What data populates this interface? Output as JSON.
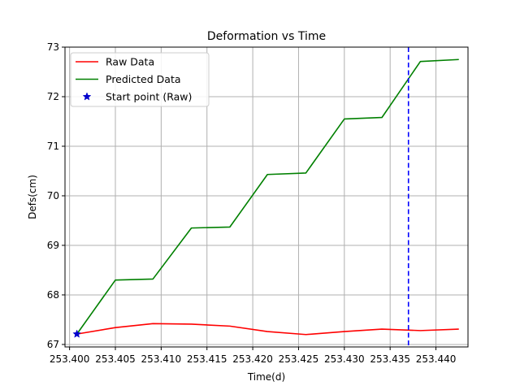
{
  "chart_data": {
    "type": "line",
    "title": "Deformation vs Time",
    "xlabel": "Time(d)",
    "ylabel": "Defs(cm)",
    "xlim": [
      253.3995,
      253.4435
    ],
    "ylim": [
      66.95,
      73.0
    ],
    "xticks": [
      253.4,
      253.405,
      253.41,
      253.415,
      253.42,
      253.425,
      253.43,
      253.435,
      253.44
    ],
    "xtick_labels": [
      "253.400",
      "253.405",
      "253.410",
      "253.415",
      "253.420",
      "253.425",
      "253.430",
      "253.435",
      "253.440"
    ],
    "yticks": [
      67,
      68,
      69,
      70,
      71,
      72,
      73
    ],
    "ytick_labels": [
      "67",
      "68",
      "69",
      "70",
      "71",
      "72",
      "73"
    ],
    "grid": true,
    "legend_position": "top-left",
    "series": [
      {
        "name": "Raw Data",
        "color": "#ff0000",
        "x": [
          253.4008,
          253.405,
          253.4091,
          253.4133,
          253.4175,
          253.4216,
          253.4258,
          253.43,
          253.4341,
          253.4383,
          253.4425
        ],
        "y": [
          67.21,
          67.34,
          67.42,
          67.41,
          67.37,
          67.26,
          67.2,
          67.26,
          67.31,
          67.28,
          67.31
        ]
      },
      {
        "name": "Predicted Data",
        "color": "#008000",
        "x": [
          253.4008,
          253.405,
          253.4091,
          253.4133,
          253.4175,
          253.4216,
          253.4258,
          253.43,
          253.4341,
          253.4383,
          253.4425
        ],
        "y": [
          67.21,
          68.3,
          68.32,
          69.35,
          69.37,
          70.43,
          70.46,
          71.55,
          71.58,
          72.71,
          72.75
        ]
      }
    ],
    "marker_point": {
      "name": "Start point (Raw)",
      "color": "#0000cc",
      "x": 253.4008,
      "y": 67.21
    },
    "vertical_line": {
      "x": 253.437,
      "color": "#0000ff"
    }
  }
}
